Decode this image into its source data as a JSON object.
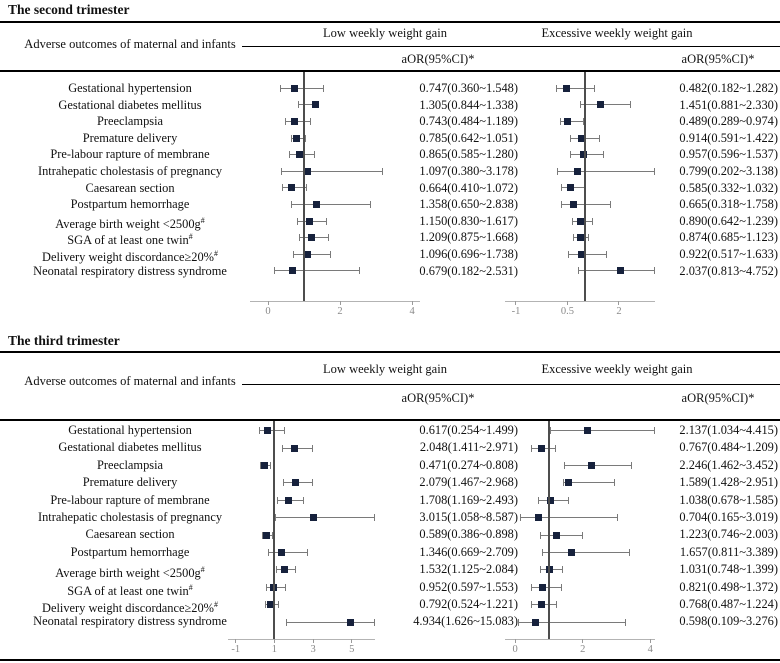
{
  "colors": {
    "marker": "#16213c",
    "ci": "#7a7a7a",
    "axis": "#b3b3b3",
    "tick_mark": "#9a9a9a",
    "tick_label": "#8a8a8a",
    "ref_line": "#4d4d4d",
    "rule": "#000000",
    "text": "#111111",
    "background": "#ffffff"
  },
  "chart_data": [
    {
      "type": "forest",
      "title": "The second trimester",
      "row_header": "Adverse outcomes of maternal and infants",
      "group_headers": [
        "Low weekly weight gain",
        "Excessive weekly weight gain"
      ],
      "value_header": "aOR(95%CI)*",
      "ref_value": 1,
      "axes": {
        "low": {
          "ticks": [
            0,
            2,
            4
          ],
          "min": -0.5,
          "max": 4.22
        },
        "exc": {
          "ticks": [
            -1,
            0.5,
            2
          ],
          "min": -1.32,
          "max": 3.05
        }
      },
      "rows": [
        {
          "label": "Gestational hypertension",
          "sup": "",
          "low": {
            "text": "0.747(0.360~1.548)",
            "est": 0.747,
            "lo": 0.36,
            "hi": 1.548
          },
          "exc": {
            "text": "0.482(0.182~1.282)",
            "est": 0.482,
            "lo": 0.182,
            "hi": 1.282
          }
        },
        {
          "label": "Gestational diabetes mellitus",
          "sup": "",
          "low": {
            "text": "1.305(0.844~1.338)",
            "est": 1.305,
            "lo": 0.844,
            "hi": 1.338
          },
          "exc": {
            "text": "1.451(0.881~2.330)",
            "est": 1.451,
            "lo": 0.881,
            "hi": 2.33
          }
        },
        {
          "label": "Preeclampsia",
          "sup": "",
          "low": {
            "text": "0.743(0.484~1.189)",
            "est": 0.743,
            "lo": 0.484,
            "hi": 1.189
          },
          "exc": {
            "text": "0.489(0.289~0.974)",
            "est": 0.489,
            "lo": 0.289,
            "hi": 0.974
          }
        },
        {
          "label": "Premature delivery",
          "sup": "",
          "low": {
            "text": "0.785(0.642~1.051)",
            "est": 0.785,
            "lo": 0.642,
            "hi": 1.051
          },
          "exc": {
            "text": "0.914(0.591~1.422)",
            "est": 0.914,
            "lo": 0.591,
            "hi": 1.422
          }
        },
        {
          "label": "Pre-labour rapture of membrane",
          "sup": "",
          "low": {
            "text": "0.865(0.585~1.280)",
            "est": 0.865,
            "lo": 0.585,
            "hi": 1.28
          },
          "exc": {
            "text": "0.957(0.596~1.537)",
            "est": 0.957,
            "lo": 0.596,
            "hi": 1.537
          }
        },
        {
          "label": "Intrahepatic cholestasis of pregnancy",
          "sup": "",
          "low": {
            "text": "1.097(0.380~3.178)",
            "est": 1.097,
            "lo": 0.38,
            "hi": 3.178
          },
          "exc": {
            "text": "0.799(0.202~3.138)",
            "est": 0.799,
            "lo": 0.202,
            "hi": 3.138
          }
        },
        {
          "label": "Caesarean section",
          "sup": "",
          "low": {
            "text": "0.664(0.410~1.072)",
            "est": 0.664,
            "lo": 0.41,
            "hi": 1.072
          },
          "exc": {
            "text": "0.585(0.332~1.032)",
            "est": 0.585,
            "lo": 0.332,
            "hi": 1.032
          }
        },
        {
          "label": "Postpartum hemorrhage",
          "sup": "",
          "low": {
            "text": "1.358(0.650~2.838)",
            "est": 1.358,
            "lo": 0.65,
            "hi": 2.838
          },
          "exc": {
            "text": "0.665(0.318~1.758)",
            "est": 0.665,
            "lo": 0.318,
            "hi": 1.758
          }
        },
        {
          "label": "Average birth weight <2500g",
          "sup": "#",
          "low": {
            "text": "1.150(0.830~1.617)",
            "est": 1.15,
            "lo": 0.83,
            "hi": 1.617
          },
          "exc": {
            "text": "0.890(0.642~1.239)",
            "est": 0.89,
            "lo": 0.642,
            "hi": 1.239
          }
        },
        {
          "label": "SGA of at least one twin",
          "sup": "#",
          "low": {
            "text": "1.209(0.875~1.668)",
            "est": 1.209,
            "lo": 0.875,
            "hi": 1.668
          },
          "exc": {
            "text": "0.874(0.685~1.123)",
            "est": 0.874,
            "lo": 0.685,
            "hi": 1.123
          }
        },
        {
          "label": "Delivery weight discordance≥20%",
          "sup": "#",
          "low": {
            "text": "1.096(0.696~1.738)",
            "est": 1.096,
            "lo": 0.696,
            "hi": 1.738
          },
          "exc": {
            "text": "0.922(0.517~1.633)",
            "est": 0.922,
            "lo": 0.517,
            "hi": 1.633
          }
        },
        {
          "label": "Neonatal respiratory distress syndrome",
          "sup": "",
          "low": {
            "text": "0.679(0.182~2.531)",
            "est": 0.679,
            "lo": 0.182,
            "hi": 2.531
          },
          "exc": {
            "text": "2.037(0.813~4.752)",
            "est": 2.037,
            "lo": 0.813,
            "hi": 4.752
          }
        }
      ]
    },
    {
      "type": "forest",
      "title": "The third trimester",
      "row_header": "Adverse outcomes of maternal and infants",
      "group_headers": [
        "Low weekly weight gain",
        "Excessive weekly weight gain"
      ],
      "value_header": "aOR(95%CI)*",
      "ref_value": 1,
      "axes": {
        "low": {
          "ticks": [
            -1,
            1,
            3,
            5
          ],
          "min": -1.4,
          "max": 6.2
        },
        "exc": {
          "ticks": [
            0,
            2,
            4
          ],
          "min": -0.3,
          "max": 4.14
        }
      },
      "rows": [
        {
          "label": "Gestational hypertension",
          "sup": "",
          "low": {
            "text": "0.617(0.254~1.499)",
            "est": 0.617,
            "lo": 0.254,
            "hi": 1.499
          },
          "exc": {
            "text": "2.137(1.034~4.415)",
            "est": 2.137,
            "lo": 1.034,
            "hi": 4.415
          }
        },
        {
          "label": "Gestational diabetes mellitus",
          "sup": "",
          "low": {
            "text": "2.048(1.411~2.971)",
            "est": 2.048,
            "lo": 1.411,
            "hi": 2.971
          },
          "exc": {
            "text": "0.767(0.484~1.209)",
            "est": 0.767,
            "lo": 0.484,
            "hi": 1.209
          }
        },
        {
          "label": "Preeclampsia",
          "sup": "",
          "low": {
            "text": "0.471(0.274~0.808)",
            "est": 0.471,
            "lo": 0.274,
            "hi": 0.808
          },
          "exc": {
            "text": "2.246(1.462~3.452)",
            "est": 2.246,
            "lo": 1.462,
            "hi": 3.452
          }
        },
        {
          "label": "Premature delivery",
          "sup": "",
          "low": {
            "text": "2.079(1.467~2.968)",
            "est": 2.079,
            "lo": 1.467,
            "hi": 2.968
          },
          "exc": {
            "text": "1.589(1.428~2.951)",
            "est": 1.589,
            "lo": 1.428,
            "hi": 2.951
          }
        },
        {
          "label": "Pre-labour rapture of membrane",
          "sup": "",
          "low": {
            "text": "1.708(1.169~2.493)",
            "est": 1.708,
            "lo": 1.169,
            "hi": 2.493
          },
          "exc": {
            "text": "1.038(0.678~1.585)",
            "est": 1.038,
            "lo": 0.678,
            "hi": 1.585
          }
        },
        {
          "label": "Intrahepatic cholestasis of pregnancy",
          "sup": "",
          "low": {
            "text": "3.015(1.058~8.587)",
            "est": 3.015,
            "lo": 1.058,
            "hi": 8.587
          },
          "exc": {
            "text": "0.704(0.165~3.019)",
            "est": 0.704,
            "lo": 0.165,
            "hi": 3.019
          }
        },
        {
          "label": "Caesarean section",
          "sup": "",
          "low": {
            "text": "0.589(0.386~0.898)",
            "est": 0.589,
            "lo": 0.386,
            "hi": 0.898
          },
          "exc": {
            "text": "1.223(0.746~2.003)",
            "est": 1.223,
            "lo": 0.746,
            "hi": 2.003
          }
        },
        {
          "label": "Postpartum hemorrhage",
          "sup": "",
          "low": {
            "text": "1.346(0.669~2.709)",
            "est": 1.346,
            "lo": 0.669,
            "hi": 2.709
          },
          "exc": {
            "text": "1.657(0.811~3.389)",
            "est": 1.657,
            "lo": 0.811,
            "hi": 3.389
          }
        },
        {
          "label": "Average birth weight <2500g",
          "sup": "#",
          "low": {
            "text": "1.532(1.125~2.084)",
            "est": 1.532,
            "lo": 1.125,
            "hi": 2.084
          },
          "exc": {
            "text": "1.031(0.748~1.399)",
            "est": 1.031,
            "lo": 0.748,
            "hi": 1.399
          }
        },
        {
          "label": "SGA of at least one twin",
          "sup": "#",
          "low": {
            "text": "0.952(0.597~1.553)",
            "est": 0.952,
            "lo": 0.597,
            "hi": 1.553
          },
          "exc": {
            "text": "0.821(0.498~1.372)",
            "est": 0.821,
            "lo": 0.498,
            "hi": 1.372
          }
        },
        {
          "label": "Delivery weight discordance≥20%",
          "sup": "#",
          "low": {
            "text": "0.792(0.524~1.221)",
            "est": 0.792,
            "lo": 0.524,
            "hi": 1.221
          },
          "exc": {
            "text": "0.768(0.487~1.224)",
            "est": 0.768,
            "lo": 0.487,
            "hi": 1.224
          }
        },
        {
          "label": "Neonatal respiratory distress syndrome",
          "sup": "",
          "low": {
            "text": "4.934(1.626~15.083)",
            "est": 4.934,
            "lo": 1.626,
            "hi": 15.083
          },
          "exc": {
            "text": "0.598(0.109~3.276)",
            "est": 0.598,
            "lo": 0.109,
            "hi": 3.276
          }
        }
      ]
    }
  ]
}
